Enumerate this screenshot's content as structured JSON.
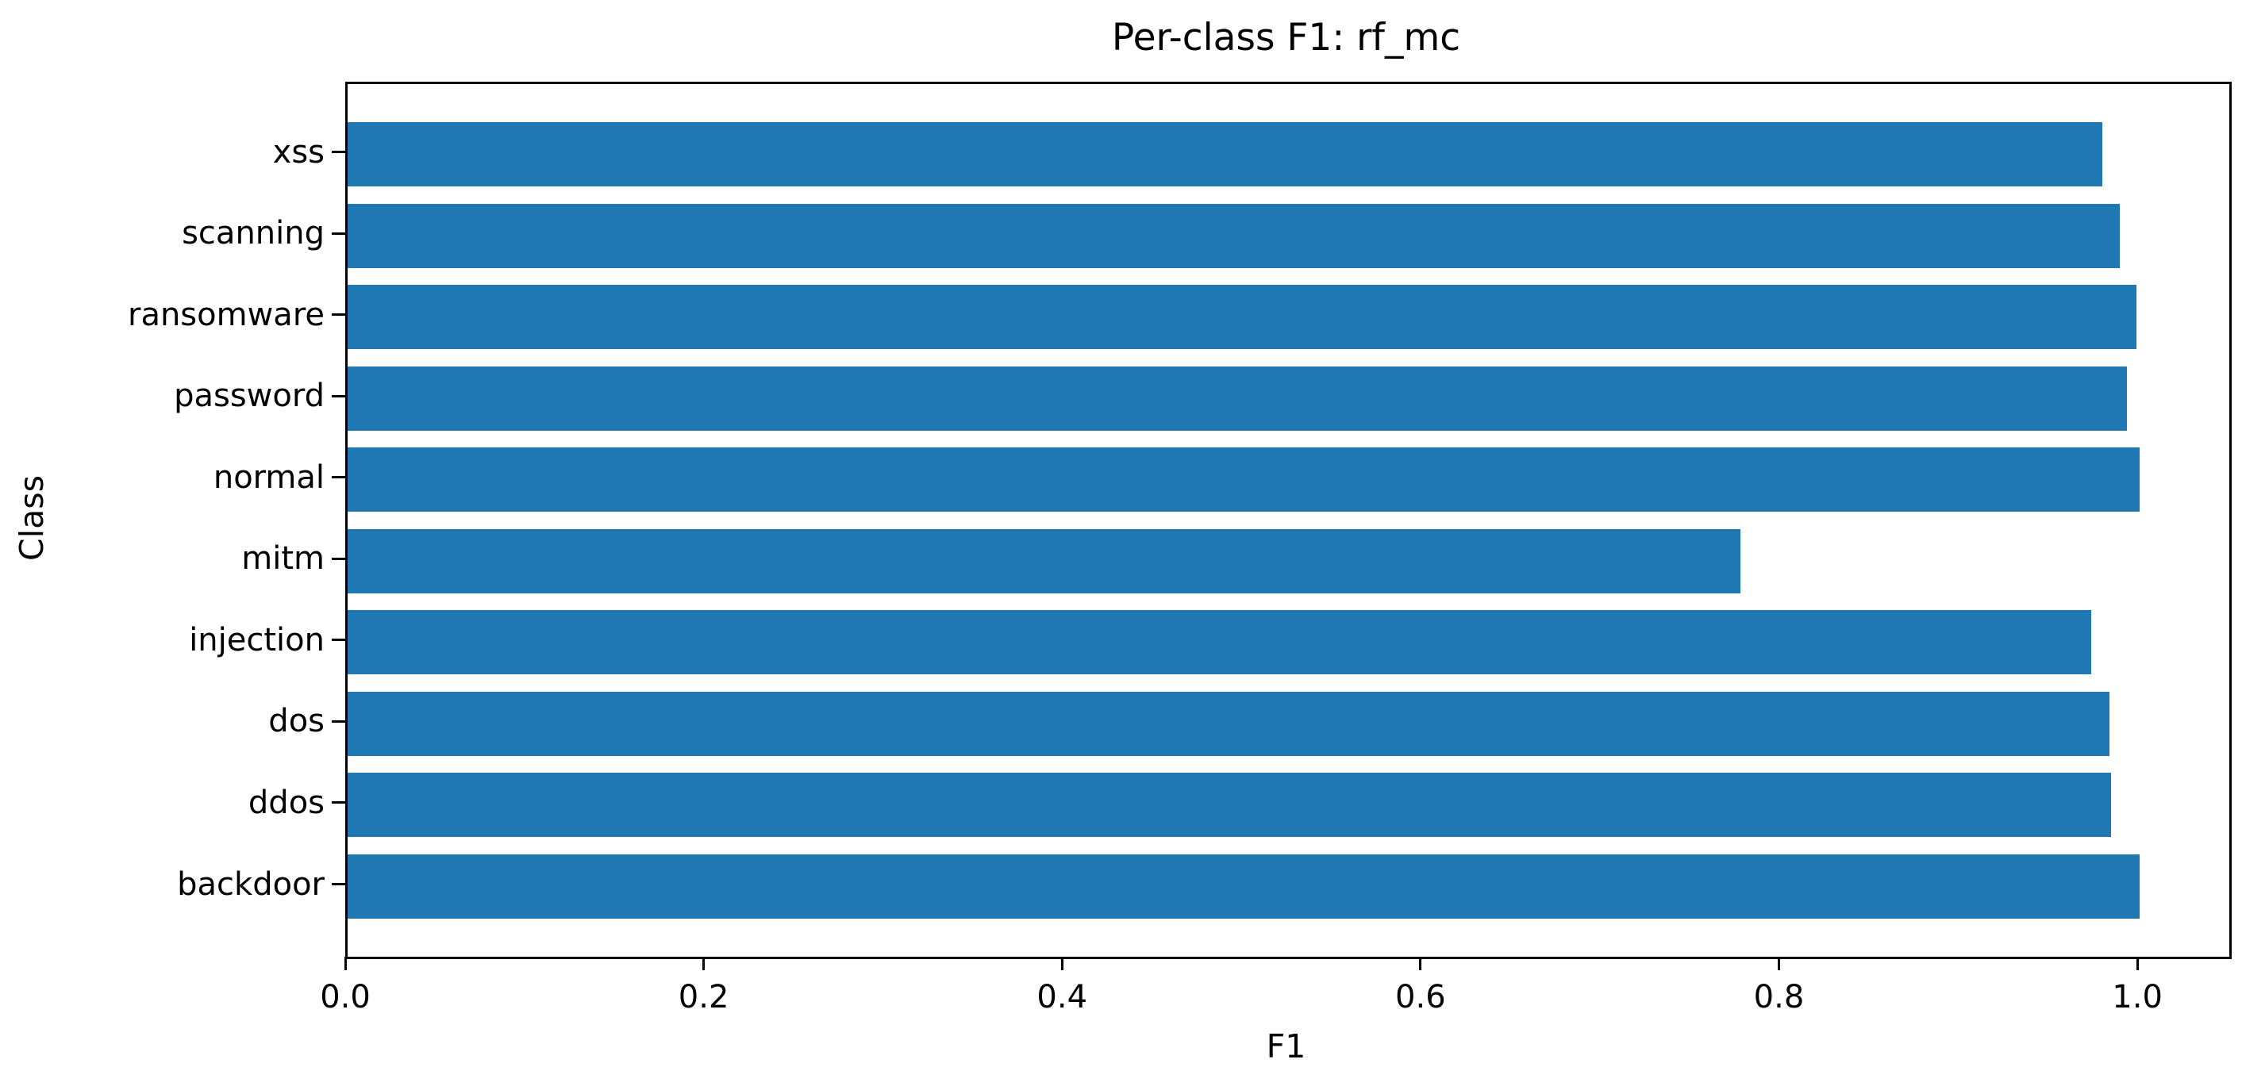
{
  "chart_data": {
    "type": "bar",
    "orientation": "horizontal",
    "title": "Per-class F1: rf_mc",
    "xlabel": "F1",
    "ylabel": "Class",
    "categories": [
      "xss",
      "scanning",
      "ransomware",
      "password",
      "normal",
      "mitm",
      "injection",
      "dos",
      "ddos",
      "backdoor"
    ],
    "categories_order": "top-to-bottom",
    "values": [
      0.979,
      0.989,
      0.998,
      0.993,
      1.0,
      0.777,
      0.973,
      0.983,
      0.984,
      1.0
    ],
    "xlim": [
      0,
      1.05
    ],
    "xticks": [
      0.0,
      0.2,
      0.4,
      0.6,
      0.8,
      1.0
    ],
    "xtick_labels": [
      "0.0",
      "0.2",
      "0.4",
      "0.6",
      "0.8",
      "1.0"
    ],
    "bar_color": "#1f77b4",
    "axis_color": "#000000",
    "background_color": "#ffffff",
    "grid": false,
    "legend": null,
    "value_labels_shown": false
  }
}
